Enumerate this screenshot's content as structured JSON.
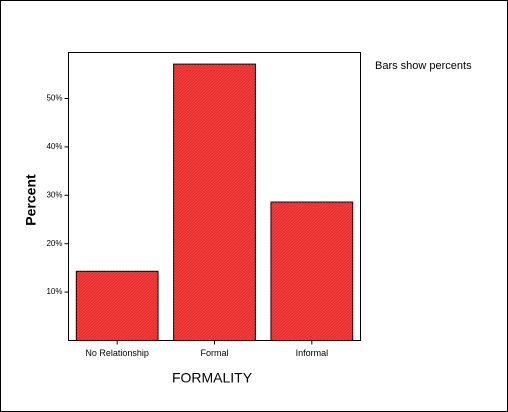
{
  "chart_data": {
    "type": "bar",
    "x_label": "FORMALITY",
    "y_label": "Percent",
    "annotation": "Bars show percents",
    "categories": [
      "No Relationship",
      "Formal",
      "Informal"
    ],
    "values": [
      14.3,
      57.1,
      28.6
    ],
    "color": "#f23a3a",
    "ylim": [
      0,
      59.5
    ],
    "yticks": [
      {
        "value": 10,
        "label": "10%"
      },
      {
        "value": 20,
        "label": "20%"
      },
      {
        "value": 30,
        "label": "30%"
      },
      {
        "value": 40,
        "label": "40%"
      },
      {
        "value": 50,
        "label": "50%"
      }
    ]
  }
}
